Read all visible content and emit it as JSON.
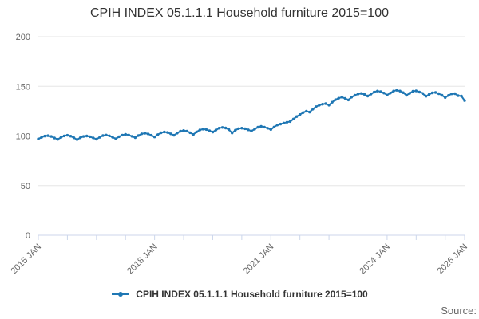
{
  "title": "CPIH INDEX 05.1.1.1 Household furniture 2015=100",
  "source_label": "Source:",
  "legend": {
    "label": "CPIH INDEX 05.1.1.1 Household furniture 2015=100"
  },
  "colors": {
    "series": "#1f77b4",
    "grid": "#e6e6e6",
    "axis_line": "#ccd6eb",
    "axis_text": "#666666",
    "title_text": "#333333"
  },
  "chart_data": {
    "type": "line",
    "title": "CPIH INDEX 05.1.1.1 Household furniture 2015=100",
    "xlabel": "",
    "ylabel": "",
    "ylim": [
      0,
      200
    ],
    "y_ticks": [
      0,
      50,
      100,
      150,
      200
    ],
    "grid": true,
    "legend_position": "bottom",
    "x_unit": "month",
    "x_start": "2015 JAN",
    "x_end": "2026 JAN",
    "x_total_months": 132,
    "x_tick_months": [
      0,
      9,
      18,
      27,
      36,
      45,
      54,
      63,
      72,
      81,
      90,
      99,
      108,
      117,
      126,
      132
    ],
    "x_label_months": [
      0,
      36,
      72,
      108,
      132
    ],
    "x_tick_labels": [
      "2015 JAN",
      "2018 JAN",
      "2021 JAN",
      "2024 JAN",
      "2026 JAN"
    ],
    "series": [
      {
        "name": "CPIH INDEX 05.1.1.1 Household furniture 2015=100",
        "color": "#1f77b4",
        "start": "2015-01",
        "interval": "monthly",
        "values": [
          97.0,
          98.6,
          99.9,
          100.3,
          99.5,
          98.0,
          96.6,
          98.5,
          100.1,
          100.7,
          99.8,
          98.2,
          96.4,
          98.2,
          99.5,
          100.0,
          99.3,
          98.1,
          96.8,
          98.7,
          100.4,
          101.0,
          100.2,
          98.8,
          97.2,
          99.3,
          100.9,
          101.6,
          101.0,
          99.7,
          98.4,
          100.5,
          102.2,
          102.8,
          102.1,
          100.7,
          99.0,
          101.4,
          103.2,
          104.0,
          103.5,
          102.2,
          100.7,
          102.9,
          104.8,
          105.5,
          104.9,
          103.3,
          101.5,
          104.1,
          106.0,
          106.9,
          106.5,
          105.3,
          103.9,
          106.0,
          107.9,
          108.6,
          108.0,
          106.4,
          103.0,
          105.9,
          107.4,
          107.9,
          107.3,
          106.2,
          105.0,
          106.8,
          108.8,
          109.6,
          108.9,
          107.8,
          106.5,
          109.0,
          111.0,
          112.0,
          113.0,
          113.8,
          114.5,
          117.0,
          119.5,
          121.5,
          123.5,
          125.0,
          124.0,
          127.0,
          129.5,
          131.0,
          132.0,
          132.5,
          131.0,
          134.0,
          136.5,
          138.0,
          139.0,
          137.8,
          136.2,
          139.0,
          141.0,
          142.2,
          142.8,
          141.8,
          140.2,
          142.2,
          144.2,
          145.2,
          144.6,
          143.2,
          141.2,
          143.2,
          145.2,
          146.0,
          145.2,
          143.6,
          141.0,
          143.0,
          145.0,
          145.4,
          144.2,
          142.8,
          139.8,
          141.8,
          143.4,
          143.8,
          142.6,
          141.0,
          138.6,
          140.8,
          142.4,
          142.6,
          140.6,
          140.2,
          135.6
        ]
      }
    ]
  }
}
